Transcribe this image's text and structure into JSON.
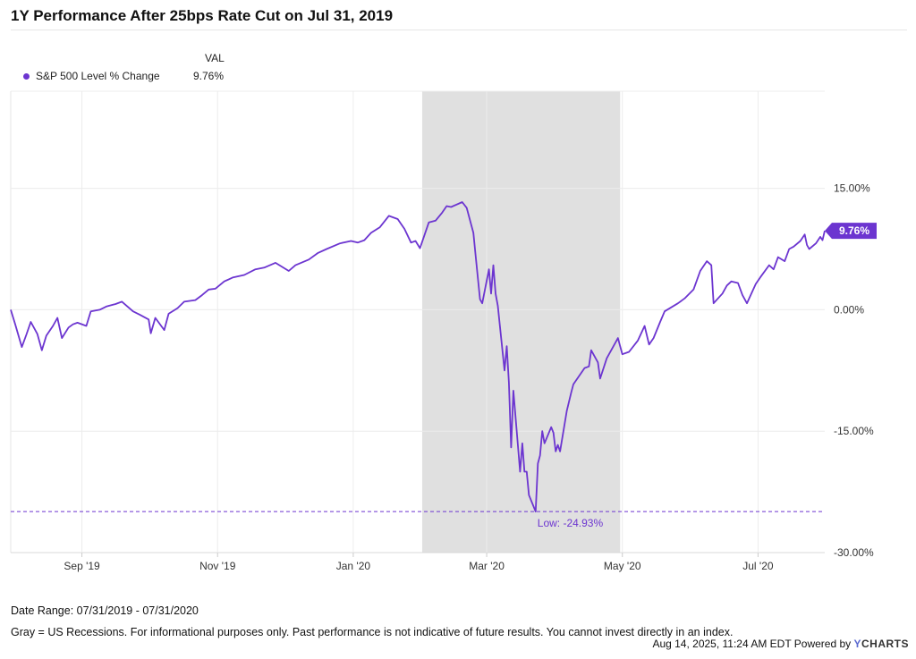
{
  "chart_data": {
    "type": "line",
    "title": "1Y Performance After 25bps Rate Cut on Jul 31, 2019",
    "legend": {
      "column_header": "VAL",
      "entries": [
        {
          "name": "S&P 500 Level % Change",
          "value": "9.76%"
        }
      ],
      "placement": "top-left"
    },
    "x_start": "2019-07-31",
    "x_end": "2020-07-31",
    "x_ticks": [
      {
        "label": "Sep '19",
        "date": "2019-09-01"
      },
      {
        "label": "Nov '19",
        "date": "2019-11-01"
      },
      {
        "label": "Jan '20",
        "date": "2020-01-01"
      },
      {
        "label": "Mar '20",
        "date": "2020-03-01"
      },
      {
        "label": "May '20",
        "date": "2020-05-01"
      },
      {
        "label": "Jul '20",
        "date": "2020-07-01"
      }
    ],
    "y_ticks": [
      {
        "label": "15.00%",
        "value": 15
      },
      {
        "label": "0.00%",
        "value": 0
      },
      {
        "label": "-15.00%",
        "value": -15
      },
      {
        "label": "-30.00%",
        "value": -30
      }
    ],
    "ylim": [
      -30,
      27
    ],
    "grid": true,
    "recession_band": {
      "start": "2020-02-01",
      "end": "2020-04-30",
      "color": "#e0e0e0"
    },
    "low_marker": {
      "value": -24.93,
      "label": "Low: -24.93%",
      "date": "2020-03-23"
    },
    "last_value_label": "9.76%",
    "series": [
      {
        "name": "S&P 500 Level % Change",
        "color": "#6c35d0",
        "points": [
          [
            "2019-07-31",
            0.0
          ],
          [
            "2019-08-02",
            -1.8
          ],
          [
            "2019-08-05",
            -4.6
          ],
          [
            "2019-08-07",
            -3.1
          ],
          [
            "2019-08-09",
            -1.5
          ],
          [
            "2019-08-12",
            -3.0
          ],
          [
            "2019-08-14",
            -5.0
          ],
          [
            "2019-08-16",
            -3.2
          ],
          [
            "2019-08-19",
            -2.0
          ],
          [
            "2019-08-21",
            -1.0
          ],
          [
            "2019-08-23",
            -3.5
          ],
          [
            "2019-08-26",
            -2.2
          ],
          [
            "2019-08-28",
            -1.8
          ],
          [
            "2019-08-30",
            -1.6
          ],
          [
            "2019-09-03",
            -2.0
          ],
          [
            "2019-09-05",
            -0.2
          ],
          [
            "2019-09-09",
            0.0
          ],
          [
            "2019-09-12",
            0.4
          ],
          [
            "2019-09-16",
            0.7
          ],
          [
            "2019-09-19",
            1.0
          ],
          [
            "2019-09-24",
            -0.2
          ],
          [
            "2019-09-27",
            -0.6
          ],
          [
            "2019-10-01",
            -1.2
          ],
          [
            "2019-10-02",
            -2.9
          ],
          [
            "2019-10-04",
            -1.0
          ],
          [
            "2019-10-08",
            -2.5
          ],
          [
            "2019-10-10",
            -0.5
          ],
          [
            "2019-10-14",
            0.2
          ],
          [
            "2019-10-17",
            1.0
          ],
          [
            "2019-10-22",
            1.2
          ],
          [
            "2019-10-25",
            1.8
          ],
          [
            "2019-10-28",
            2.5
          ],
          [
            "2019-10-31",
            2.6
          ],
          [
            "2019-11-04",
            3.5
          ],
          [
            "2019-11-08",
            4.0
          ],
          [
            "2019-11-13",
            4.3
          ],
          [
            "2019-11-18",
            5.0
          ],
          [
            "2019-11-22",
            5.2
          ],
          [
            "2019-11-27",
            5.8
          ],
          [
            "2019-12-03",
            4.8
          ],
          [
            "2019-12-06",
            5.5
          ],
          [
            "2019-12-12",
            6.2
          ],
          [
            "2019-12-16",
            7.0
          ],
          [
            "2019-12-20",
            7.5
          ],
          [
            "2019-12-26",
            8.2
          ],
          [
            "2019-12-31",
            8.5
          ],
          [
            "2020-01-03",
            8.3
          ],
          [
            "2020-01-06",
            8.6
          ],
          [
            "2020-01-09",
            9.5
          ],
          [
            "2020-01-13",
            10.2
          ],
          [
            "2020-01-17",
            11.6
          ],
          [
            "2020-01-21",
            11.2
          ],
          [
            "2020-01-24",
            10.0
          ],
          [
            "2020-01-27",
            8.3
          ],
          [
            "2020-01-29",
            8.5
          ],
          [
            "2020-01-31",
            7.6
          ],
          [
            "2020-02-04",
            10.8
          ],
          [
            "2020-02-07",
            11.0
          ],
          [
            "2020-02-10",
            12.0
          ],
          [
            "2020-02-12",
            12.8
          ],
          [
            "2020-02-14",
            12.7
          ],
          [
            "2020-02-19",
            13.3
          ],
          [
            "2020-02-21",
            12.6
          ],
          [
            "2020-02-24",
            9.5
          ],
          [
            "2020-02-25",
            6.8
          ],
          [
            "2020-02-27",
            1.3
          ],
          [
            "2020-02-28",
            0.8
          ],
          [
            "2020-03-02",
            5.0
          ],
          [
            "2020-03-03",
            2.0
          ],
          [
            "2020-03-04",
            5.5
          ],
          [
            "2020-03-05",
            2.0
          ],
          [
            "2020-03-06",
            0.5
          ],
          [
            "2020-03-09",
            -7.5
          ],
          [
            "2020-03-10",
            -4.5
          ],
          [
            "2020-03-11",
            -9.0
          ],
          [
            "2020-03-12",
            -17.0
          ],
          [
            "2020-03-13",
            -10.0
          ],
          [
            "2020-03-16",
            -20.0
          ],
          [
            "2020-03-17",
            -16.5
          ],
          [
            "2020-03-18",
            -20.0
          ],
          [
            "2020-03-19",
            -20.0
          ],
          [
            "2020-03-20",
            -22.9
          ],
          [
            "2020-03-23",
            -24.93
          ],
          [
            "2020-03-24",
            -19.0
          ],
          [
            "2020-03-25",
            -18.0
          ],
          [
            "2020-03-26",
            -15.0
          ],
          [
            "2020-03-27",
            -16.5
          ],
          [
            "2020-03-30",
            -14.5
          ],
          [
            "2020-03-31",
            -15.2
          ],
          [
            "2020-04-01",
            -17.5
          ],
          [
            "2020-04-02",
            -16.7
          ],
          [
            "2020-04-03",
            -17.5
          ],
          [
            "2020-04-06",
            -12.5
          ],
          [
            "2020-04-08",
            -10.2
          ],
          [
            "2020-04-09",
            -9.2
          ],
          [
            "2020-04-14",
            -7.2
          ],
          [
            "2020-04-16",
            -7.0
          ],
          [
            "2020-04-17",
            -5.0
          ],
          [
            "2020-04-20",
            -6.5
          ],
          [
            "2020-04-21",
            -8.5
          ],
          [
            "2020-04-24",
            -6.0
          ],
          [
            "2020-04-29",
            -3.5
          ],
          [
            "2020-05-01",
            -5.5
          ],
          [
            "2020-05-04",
            -5.2
          ],
          [
            "2020-05-08",
            -3.8
          ],
          [
            "2020-05-11",
            -2.0
          ],
          [
            "2020-05-13",
            -4.3
          ],
          [
            "2020-05-15",
            -3.5
          ],
          [
            "2020-05-18",
            -1.5
          ],
          [
            "2020-05-20",
            -0.2
          ],
          [
            "2020-05-26",
            0.8
          ],
          [
            "2020-05-29",
            1.4
          ],
          [
            "2020-06-02",
            2.5
          ],
          [
            "2020-06-05",
            4.8
          ],
          [
            "2020-06-08",
            6.0
          ],
          [
            "2020-06-10",
            5.5
          ],
          [
            "2020-06-11",
            0.8
          ],
          [
            "2020-06-15",
            2.0
          ],
          [
            "2020-06-17",
            3.0
          ],
          [
            "2020-06-19",
            3.5
          ],
          [
            "2020-06-22",
            3.3
          ],
          [
            "2020-06-24",
            1.8
          ],
          [
            "2020-06-26",
            0.8
          ],
          [
            "2020-06-30",
            3.2
          ],
          [
            "2020-07-02",
            4.0
          ],
          [
            "2020-07-06",
            5.5
          ],
          [
            "2020-07-08",
            5.0
          ],
          [
            "2020-07-10",
            6.5
          ],
          [
            "2020-07-13",
            6.0
          ],
          [
            "2020-07-15",
            7.5
          ],
          [
            "2020-07-17",
            7.8
          ],
          [
            "2020-07-20",
            8.5
          ],
          [
            "2020-07-22",
            9.3
          ],
          [
            "2020-07-23",
            8.0
          ],
          [
            "2020-07-24",
            7.5
          ],
          [
            "2020-07-27",
            8.2
          ],
          [
            "2020-07-29",
            9.0
          ],
          [
            "2020-07-30",
            8.6
          ],
          [
            "2020-07-31",
            9.76
          ]
        ]
      }
    ]
  },
  "footer": {
    "date_range": "Date Range: 07/31/2019 - 07/31/2020",
    "note": "Gray = US Recessions. For informational purposes only. Past performance is not indicative of future results. You cannot invest directly in an index.",
    "timestamp": "Aug 14, 2025, 11:24 AM EDT Powered by",
    "brand_initial": "Y",
    "brand_rest": "CHARTS"
  }
}
